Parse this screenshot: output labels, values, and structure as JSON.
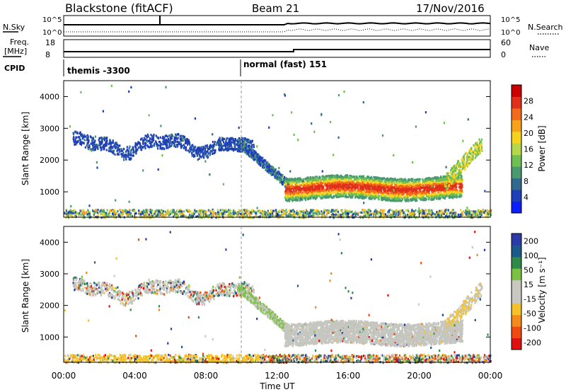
{
  "header": {
    "station": "Blackstone (fitACF)",
    "beam": "Beam 21",
    "date": "17/Nov/2016"
  },
  "strips": {
    "nsky_label": "N.Sky",
    "nsearch_label": "N.Search",
    "nsky_ticks": [
      "10^5",
      "10^0"
    ],
    "nsearch_ticks": [
      "10^5",
      "10^0"
    ],
    "freq_label_1": "Freq.",
    "freq_label_2": "[MHz]",
    "freq_ticks": [
      "18",
      "8"
    ],
    "nave_label": "Nave",
    "nave_ticks": [
      "60",
      "0"
    ],
    "cpid_label": "CPID",
    "cpid_segments": [
      {
        "label": "themis -3300",
        "start_hour": 0
      },
      {
        "label": "normal (fast) 151",
        "start_hour": 10.0
      }
    ]
  },
  "colors": {
    "power": [
      "#0a1eff",
      "#1f3fb8",
      "#2f6a8e",
      "#4a9a70",
      "#6fbf52",
      "#b5d84a",
      "#f5d21e",
      "#f7a21a",
      "#f26a1a",
      "#e0301a",
      "#cc0000"
    ],
    "velocity": [
      "#e01010",
      "#f04a10",
      "#f58a1a",
      "#f5c22a",
      "#c8c8c0",
      "#c8c8c0",
      "#7cc242",
      "#2f8a4a",
      "#1a5a8a",
      "#2a3aa8"
    ],
    "gs": "#c6c6c0"
  },
  "chart_data": [
    {
      "type": "heatmap",
      "title": "Power",
      "xlabel": "",
      "ylabel": "Slant Range [km]",
      "xlim": [
        0,
        24
      ],
      "ylim": [
        200,
        4500
      ],
      "yticks": [
        "1000",
        "2000",
        "3000",
        "4000"
      ],
      "colorbar": {
        "label": "Power [dB]",
        "range": [
          0,
          32
        ],
        "ticks": [
          "4",
          "8",
          "12",
          "16",
          "20",
          "24",
          "28"
        ]
      },
      "features": [
        {
          "description": "scattered echoes",
          "hour_range": [
            0.5,
            10.5
          ],
          "range_km": [
            2000,
            3100
          ],
          "power_db": 6
        },
        {
          "description": "strong band",
          "hour_range": [
            12.8,
            22.3
          ],
          "range_km": [
            900,
            1500
          ],
          "power_db": 28
        },
        {
          "description": "near-range clutter",
          "hour_range": [
            0,
            24
          ],
          "range_km": [
            200,
            450
          ],
          "power_db": 12
        }
      ]
    },
    {
      "type": "heatmap",
      "title": "Velocity",
      "xlabel": "Time UT",
      "ylabel": "Slant Range [km]",
      "xlim": [
        0,
        24
      ],
      "ylim": [
        200,
        4500
      ],
      "yticks": [
        "1000",
        "2000",
        "3000",
        "4000"
      ],
      "xticks": [
        "00:00",
        "04:00",
        "08:00",
        "12:00",
        "16:00",
        "20:00",
        "00:00"
      ],
      "colorbar": {
        "label": "Velocity [m s⁻¹]",
        "ticks": [
          "200",
          "100",
          "50",
          "15",
          "-15",
          "-50",
          "-100",
          "-200"
        ]
      },
      "features": [
        {
          "description": "ground scatter (grey)",
          "hour_range": [
            12.5,
            22.5
          ],
          "range_km": [
            900,
            1900
          ]
        },
        {
          "description": "mixed low velocities",
          "hour_range": [
            0.5,
            10.5
          ],
          "range_km": [
            2000,
            3100
          ]
        }
      ]
    }
  ]
}
